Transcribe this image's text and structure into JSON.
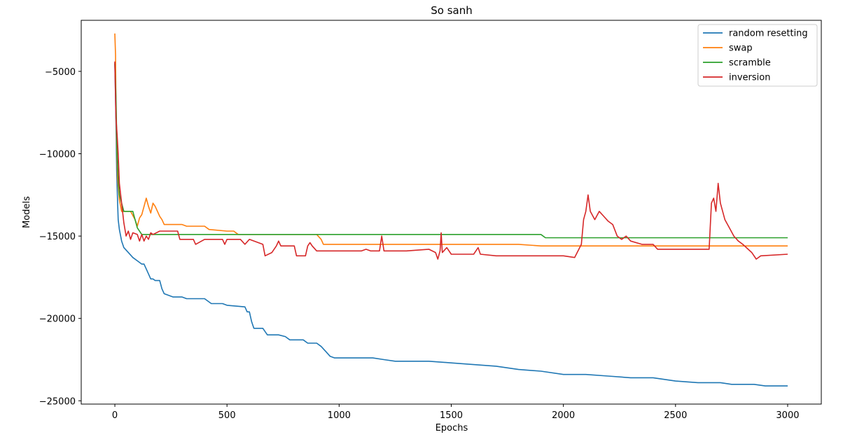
{
  "chart_data": {
    "type": "line",
    "title": "So sanh",
    "xlabel": "Epochs",
    "ylabel": "Models",
    "xlim": [
      -150,
      3150
    ],
    "ylim": [
      -25200,
      -1900
    ],
    "xticks": [
      0,
      500,
      1000,
      1500,
      2000,
      2500,
      3000
    ],
    "xtick_labels": [
      "0",
      "500",
      "1000",
      "1500",
      "2000",
      "2500",
      "3000"
    ],
    "yticks": [
      -5000,
      -10000,
      -15000,
      -20000,
      -25000
    ],
    "ytick_labels": [
      "−5000",
      "−10000",
      "−15000",
      "−20000",
      "−25000"
    ],
    "grid": false,
    "legend_position": "top-right",
    "series": [
      {
        "name": "random resetting",
        "color": "#1f77b4",
        "points": [
          [
            0,
            -4500
          ],
          [
            5,
            -8000
          ],
          [
            8,
            -11000
          ],
          [
            12,
            -12900
          ],
          [
            15,
            -14000
          ],
          [
            20,
            -14600
          ],
          [
            30,
            -15300
          ],
          [
            40,
            -15700
          ],
          [
            60,
            -16000
          ],
          [
            80,
            -16300
          ],
          [
            100,
            -16500
          ],
          [
            120,
            -16700
          ],
          [
            130,
            -16700
          ],
          [
            140,
            -17000
          ],
          [
            150,
            -17300
          ],
          [
            160,
            -17600
          ],
          [
            170,
            -17600
          ],
          [
            180,
            -17700
          ],
          [
            200,
            -17700
          ],
          [
            210,
            -18200
          ],
          [
            220,
            -18500
          ],
          [
            240,
            -18600
          ],
          [
            260,
            -18700
          ],
          [
            300,
            -18700
          ],
          [
            320,
            -18800
          ],
          [
            400,
            -18800
          ],
          [
            430,
            -19100
          ],
          [
            480,
            -19100
          ],
          [
            500,
            -19200
          ],
          [
            580,
            -19300
          ],
          [
            590,
            -19600
          ],
          [
            600,
            -19600
          ],
          [
            610,
            -20200
          ],
          [
            620,
            -20600
          ],
          [
            660,
            -20600
          ],
          [
            680,
            -21000
          ],
          [
            730,
            -21000
          ],
          [
            760,
            -21100
          ],
          [
            780,
            -21300
          ],
          [
            840,
            -21300
          ],
          [
            860,
            -21500
          ],
          [
            900,
            -21500
          ],
          [
            920,
            -21700
          ],
          [
            940,
            -22000
          ],
          [
            960,
            -22300
          ],
          [
            980,
            -22400
          ],
          [
            1100,
            -22400
          ],
          [
            1150,
            -22400
          ],
          [
            1200,
            -22500
          ],
          [
            1250,
            -22600
          ],
          [
            1400,
            -22600
          ],
          [
            1500,
            -22700
          ],
          [
            1600,
            -22800
          ],
          [
            1700,
            -22900
          ],
          [
            1800,
            -23100
          ],
          [
            1900,
            -23200
          ],
          [
            2000,
            -23400
          ],
          [
            2100,
            -23400
          ],
          [
            2200,
            -23500
          ],
          [
            2300,
            -23600
          ],
          [
            2400,
            -23600
          ],
          [
            2500,
            -23800
          ],
          [
            2600,
            -23900
          ],
          [
            2700,
            -23900
          ],
          [
            2750,
            -24000
          ],
          [
            2850,
            -24000
          ],
          [
            2900,
            -24100
          ],
          [
            3000,
            -24100
          ]
        ]
      },
      {
        "name": "swap",
        "color": "#ff7f0e",
        "points": [
          [
            0,
            -2700
          ],
          [
            3,
            -4000
          ],
          [
            5,
            -7000
          ],
          [
            8,
            -9500
          ],
          [
            12,
            -11500
          ],
          [
            20,
            -12800
          ],
          [
            30,
            -13500
          ],
          [
            50,
            -13500
          ],
          [
            70,
            -13500
          ],
          [
            90,
            -14000
          ],
          [
            100,
            -14400
          ],
          [
            110,
            -13900
          ],
          [
            120,
            -13700
          ],
          [
            130,
            -13200
          ],
          [
            140,
            -12700
          ],
          [
            150,
            -13200
          ],
          [
            160,
            -13600
          ],
          [
            170,
            -13000
          ],
          [
            180,
            -13200
          ],
          [
            190,
            -13500
          ],
          [
            200,
            -13800
          ],
          [
            210,
            -14000
          ],
          [
            220,
            -14300
          ],
          [
            300,
            -14300
          ],
          [
            320,
            -14400
          ],
          [
            400,
            -14400
          ],
          [
            420,
            -14600
          ],
          [
            500,
            -14700
          ],
          [
            530,
            -14700
          ],
          [
            550,
            -14900
          ],
          [
            900,
            -14900
          ],
          [
            920,
            -15200
          ],
          [
            930,
            -15500
          ],
          [
            1000,
            -15500
          ],
          [
            1500,
            -15500
          ],
          [
            1800,
            -15500
          ],
          [
            1900,
            -15600
          ],
          [
            3000,
            -15600
          ]
        ]
      },
      {
        "name": "scramble",
        "color": "#2ca02c",
        "points": [
          [
            0,
            -4500
          ],
          [
            5,
            -6500
          ],
          [
            10,
            -10000
          ],
          [
            15,
            -11500
          ],
          [
            20,
            -12500
          ],
          [
            30,
            -13000
          ],
          [
            40,
            -13500
          ],
          [
            80,
            -13500
          ],
          [
            90,
            -14000
          ],
          [
            100,
            -14500
          ],
          [
            120,
            -14900
          ],
          [
            200,
            -14900
          ],
          [
            500,
            -14900
          ],
          [
            1000,
            -14900
          ],
          [
            1500,
            -14900
          ],
          [
            1900,
            -14900
          ],
          [
            1920,
            -15100
          ],
          [
            2500,
            -15100
          ],
          [
            3000,
            -15100
          ]
        ]
      },
      {
        "name": "inversion",
        "color": "#d62728",
        "points": [
          [
            0,
            -4400
          ],
          [
            5,
            -7800
          ],
          [
            10,
            -8800
          ],
          [
            15,
            -10000
          ],
          [
            20,
            -11800
          ],
          [
            30,
            -13000
          ],
          [
            40,
            -14200
          ],
          [
            50,
            -15000
          ],
          [
            60,
            -14700
          ],
          [
            70,
            -15200
          ],
          [
            80,
            -14800
          ],
          [
            100,
            -14900
          ],
          [
            110,
            -15300
          ],
          [
            120,
            -14900
          ],
          [
            130,
            -15300
          ],
          [
            140,
            -15000
          ],
          [
            150,
            -15200
          ],
          [
            160,
            -14800
          ],
          [
            170,
            -14900
          ],
          [
            200,
            -14700
          ],
          [
            280,
            -14700
          ],
          [
            290,
            -15200
          ],
          [
            350,
            -15200
          ],
          [
            360,
            -15500
          ],
          [
            400,
            -15200
          ],
          [
            480,
            -15200
          ],
          [
            490,
            -15500
          ],
          [
            500,
            -15200
          ],
          [
            560,
            -15200
          ],
          [
            580,
            -15500
          ],
          [
            600,
            -15200
          ],
          [
            660,
            -15500
          ],
          [
            670,
            -16200
          ],
          [
            700,
            -16000
          ],
          [
            720,
            -15600
          ],
          [
            730,
            -15300
          ],
          [
            740,
            -15600
          ],
          [
            800,
            -15600
          ],
          [
            810,
            -16200
          ],
          [
            850,
            -16200
          ],
          [
            860,
            -15600
          ],
          [
            870,
            -15400
          ],
          [
            880,
            -15600
          ],
          [
            900,
            -15900
          ],
          [
            1000,
            -15900
          ],
          [
            1050,
            -15900
          ],
          [
            1100,
            -15900
          ],
          [
            1120,
            -15800
          ],
          [
            1140,
            -15900
          ],
          [
            1180,
            -15900
          ],
          [
            1190,
            -15000
          ],
          [
            1200,
            -15900
          ],
          [
            1300,
            -15900
          ],
          [
            1400,
            -15800
          ],
          [
            1430,
            -16000
          ],
          [
            1440,
            -16400
          ],
          [
            1450,
            -15900
          ],
          [
            1455,
            -14800
          ],
          [
            1460,
            -16000
          ],
          [
            1480,
            -15700
          ],
          [
            1500,
            -16100
          ],
          [
            1600,
            -16100
          ],
          [
            1620,
            -15700
          ],
          [
            1630,
            -16100
          ],
          [
            1700,
            -16200
          ],
          [
            1800,
            -16200
          ],
          [
            1900,
            -16200
          ],
          [
            2000,
            -16200
          ],
          [
            2050,
            -16300
          ],
          [
            2080,
            -15500
          ],
          [
            2090,
            -14000
          ],
          [
            2100,
            -13500
          ],
          [
            2110,
            -12500
          ],
          [
            2120,
            -13500
          ],
          [
            2140,
            -14000
          ],
          [
            2160,
            -13500
          ],
          [
            2180,
            -13800
          ],
          [
            2200,
            -14100
          ],
          [
            2220,
            -14300
          ],
          [
            2240,
            -15000
          ],
          [
            2260,
            -15200
          ],
          [
            2280,
            -15000
          ],
          [
            2300,
            -15300
          ],
          [
            2350,
            -15500
          ],
          [
            2400,
            -15500
          ],
          [
            2420,
            -15800
          ],
          [
            2500,
            -15800
          ],
          [
            2600,
            -15800
          ],
          [
            2650,
            -15800
          ],
          [
            2660,
            -13000
          ],
          [
            2670,
            -12700
          ],
          [
            2680,
            -13500
          ],
          [
            2690,
            -11800
          ],
          [
            2700,
            -13000
          ],
          [
            2720,
            -14000
          ],
          [
            2740,
            -14500
          ],
          [
            2760,
            -15000
          ],
          [
            2780,
            -15300
          ],
          [
            2800,
            -15500
          ],
          [
            2840,
            -16000
          ],
          [
            2860,
            -16400
          ],
          [
            2880,
            -16200
          ],
          [
            3000,
            -16100
          ]
        ]
      }
    ]
  }
}
